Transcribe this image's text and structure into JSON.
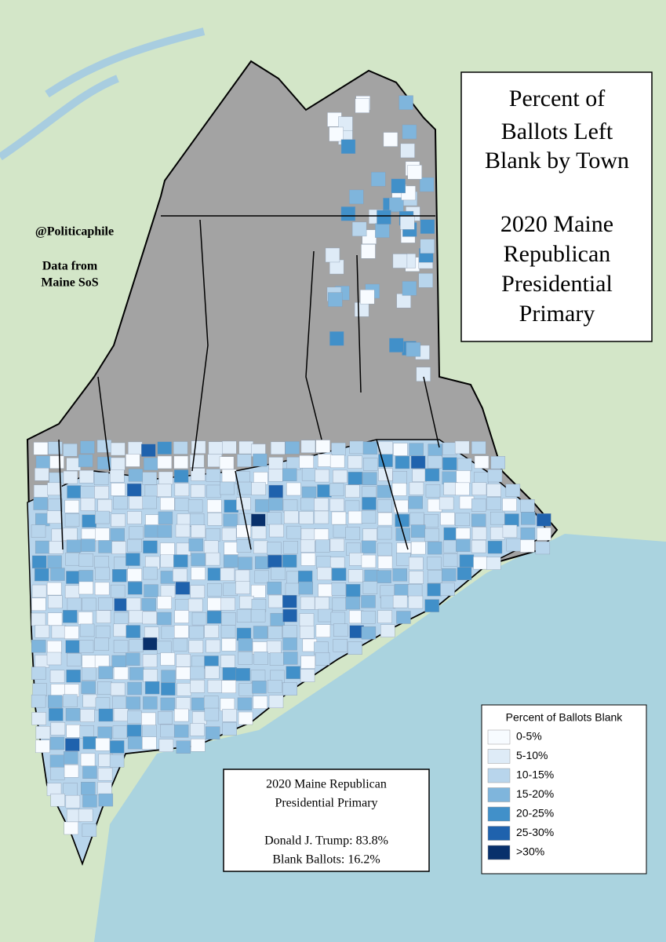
{
  "title": {
    "lines": [
      "Percent of",
      "Ballots Left",
      "Blank by Town",
      "2020 Maine",
      "Republican",
      "Presidential",
      "Primary"
    ]
  },
  "credits": [
    "@Politicaphile",
    "Data from",
    "Maine SoS"
  ],
  "legend": {
    "title": "Percent of Ballots Blank",
    "items": [
      {
        "label": "0-5%",
        "color": "#f7fbff"
      },
      {
        "label": "5-10%",
        "color": "#deebf7"
      },
      {
        "label": "10-15%",
        "color": "#b8d5ec"
      },
      {
        "label": "15-20%",
        "color": "#7fb5dc"
      },
      {
        "label": "20-25%",
        "color": "#4190c9"
      },
      {
        "label": "25-30%",
        "color": "#1f62ad"
      },
      {
        "label": ">30%",
        "color": "#08306b"
      }
    ]
  },
  "summary": {
    "lines": [
      "2020 Maine Republican",
      "Presidential Primary"
    ],
    "results": [
      "Donald J. Trump: 83.8%",
      "Blank Ballots: 16.2%"
    ]
  }
}
